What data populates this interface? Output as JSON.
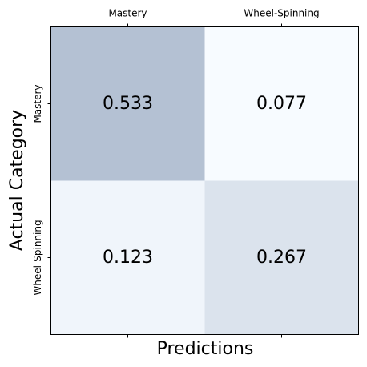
{
  "chart_data": {
    "type": "heatmap",
    "title": "",
    "xlabel": "Predictions",
    "ylabel": "Actual Category",
    "x_categories": [
      "Mastery",
      "Wheel-Spinning"
    ],
    "y_categories": [
      "Mastery",
      "Wheel-Spinning"
    ],
    "values": [
      [
        0.533,
        0.077
      ],
      [
        0.123,
        0.267
      ]
    ],
    "value_labels": [
      [
        "0.533",
        "0.077"
      ],
      [
        "0.123",
        "0.267"
      ]
    ],
    "x_tick_position": "top",
    "color_scale": {
      "low": "#f7fbff",
      "high": "#b4c1d3"
    },
    "grid": false
  }
}
